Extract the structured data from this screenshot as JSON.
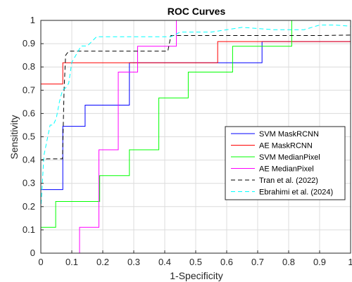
{
  "chart_data": {
    "type": "line",
    "title": "ROC Curves",
    "xlabel": "1-Specificity",
    "ylabel": "Sensitivity",
    "xlim": [
      0,
      1
    ],
    "ylim": [
      0,
      1
    ],
    "xticks": [
      0,
      0.1,
      0.2,
      0.3,
      0.4,
      0.5,
      0.6,
      0.7,
      0.8,
      0.9,
      1
    ],
    "yticks": [
      0,
      0.1,
      0.2,
      0.3,
      0.4,
      0.5,
      0.6,
      0.7,
      0.8,
      0.9,
      1
    ],
    "xtick_labels": [
      "0",
      "0.1",
      "0.2",
      "0.3",
      "0.4",
      "0.5",
      "0.6",
      "0.7",
      "0.8",
      "0.9",
      "1"
    ],
    "ytick_labels": [
      "0",
      "0.1",
      "0.2",
      "0.3",
      "0.4",
      "0.5",
      "0.6",
      "0.7",
      "0.8",
      "0.9",
      "1"
    ],
    "grid": true,
    "legend_position": "lower-right",
    "series": [
      {
        "name": "SVM MaskRCNN",
        "color": "#0000ff",
        "dash": "solid",
        "x": [
          0,
          0,
          0.071,
          0.071,
          0.143,
          0.143,
          0.286,
          0.286,
          0.714,
          0.714,
          1
        ],
        "y": [
          0,
          0.273,
          0.273,
          0.545,
          0.545,
          0.636,
          0.636,
          0.818,
          0.818,
          0.909,
          0.909
        ]
      },
      {
        "name": "AE MaskRCNN",
        "color": "#ff0000",
        "dash": "solid",
        "x": [
          0,
          0,
          0.071,
          0.071,
          0.571,
          0.571,
          1,
          1
        ],
        "y": [
          0,
          0.727,
          0.727,
          0.818,
          0.818,
          0.909,
          0.909,
          1
        ]
      },
      {
        "name": "SVM MedianPixel",
        "color": "#00ff00",
        "dash": "solid",
        "x": [
          0,
          0,
          0.048,
          0.048,
          0.19,
          0.19,
          0.286,
          0.286,
          0.381,
          0.381,
          0.476,
          0.476,
          0.619,
          0.619,
          0.81,
          0.81,
          1
        ],
        "y": [
          0,
          0.111,
          0.111,
          0.222,
          0.222,
          0.333,
          0.333,
          0.444,
          0.444,
          0.667,
          0.667,
          0.778,
          0.778,
          0.889,
          0.889,
          1,
          1
        ]
      },
      {
        "name": "AE MedianPixel",
        "color": "#ff00ff",
        "dash": "solid",
        "x": [
          0,
          0.125,
          0.125,
          0.1875,
          0.1875,
          0.25,
          0.25,
          0.3125,
          0.3125,
          0.4375,
          0.4375,
          1
        ],
        "y": [
          0,
          0,
          0.111,
          0.111,
          0.444,
          0.444,
          0.778,
          0.778,
          0.889,
          0.889,
          1,
          1
        ]
      },
      {
        "name": "Tran et al. (2022)",
        "color": "#000000",
        "dash": "dash",
        "x": [
          0,
          0,
          0.02,
          0.07,
          0.075,
          0.08,
          0.09,
          0.2,
          0.3,
          0.41,
          0.42,
          0.6,
          0.8,
          0.9,
          1
        ],
        "y": [
          0,
          0.4,
          0.405,
          0.405,
          0.7,
          0.85,
          0.868,
          0.868,
          0.868,
          0.868,
          0.935,
          0.935,
          0.935,
          0.935,
          0.937
        ]
      },
      {
        "name": "Ebrahimi et al. (2024)",
        "color": "#00ffff",
        "dash": "dash",
        "x": [
          0,
          0,
          0.01,
          0.03,
          0.04,
          0.05,
          0.06,
          0.07,
          0.08,
          0.09,
          0.1,
          0.13,
          0.15,
          0.18,
          0.25,
          0.35,
          0.42,
          0.45,
          0.55,
          0.65,
          0.75,
          0.8,
          0.85,
          0.9,
          0.95,
          1
        ],
        "y": [
          0,
          0.19,
          0.42,
          0.55,
          0.55,
          0.58,
          0.65,
          0.7,
          0.71,
          0.73,
          0.82,
          0.89,
          0.89,
          0.93,
          0.93,
          0.93,
          0.93,
          0.95,
          0.95,
          0.97,
          0.96,
          0.96,
          0.96,
          0.98,
          0.98,
          0.975
        ]
      }
    ]
  }
}
